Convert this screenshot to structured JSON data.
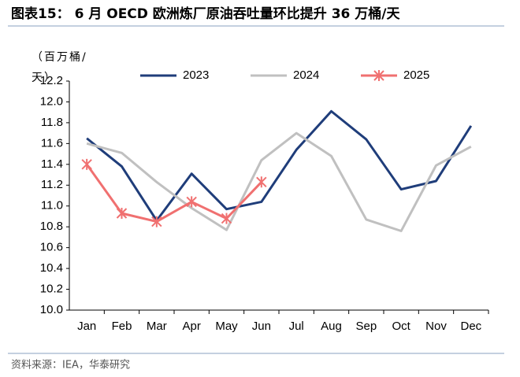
{
  "chart_data": {
    "type": "line",
    "title": "图表15： 6 月 OECD 欧洲炼厂原油吞吐量环比提升 36 万桶/天",
    "y_label": "（百万桶/天）",
    "source": "资料来源：IEA，华泰研究",
    "categories": [
      "Jan",
      "Feb",
      "Mar",
      "Apr",
      "May",
      "Jun",
      "Jul",
      "Aug",
      "Sep",
      "Oct",
      "Nov",
      "Dec"
    ],
    "series": [
      {
        "name": "2023",
        "color": "#1f3d7a",
        "values": [
          11.65,
          11.38,
          10.86,
          11.31,
          10.97,
          11.04,
          11.54,
          11.91,
          11.64,
          11.16,
          11.24,
          11.77
        ]
      },
      {
        "name": "2024",
        "color": "#c0c0c0",
        "values": [
          11.6,
          11.51,
          11.23,
          10.98,
          10.77,
          11.44,
          11.7,
          11.48,
          10.87,
          10.76,
          11.39,
          11.57
        ]
      },
      {
        "name": "2025",
        "color": "#f07070",
        "marker": "asterisk",
        "values": [
          11.4,
          10.93,
          10.85,
          11.04,
          10.88,
          11.23,
          null,
          null,
          null,
          null,
          null,
          null
        ]
      }
    ],
    "ylim": [
      10,
      12.2
    ],
    "yticks": [
      {
        "value": 10,
        "label": "10.0"
      },
      10.2,
      10.4,
      10.6,
      10.8,
      {
        "value": 11,
        "label": "11.0"
      },
      11.2,
      11.4,
      11.6,
      11.8,
      {
        "value": 12,
        "label": "12.0"
      },
      12.2
    ],
    "grid": false,
    "legend": "top"
  }
}
